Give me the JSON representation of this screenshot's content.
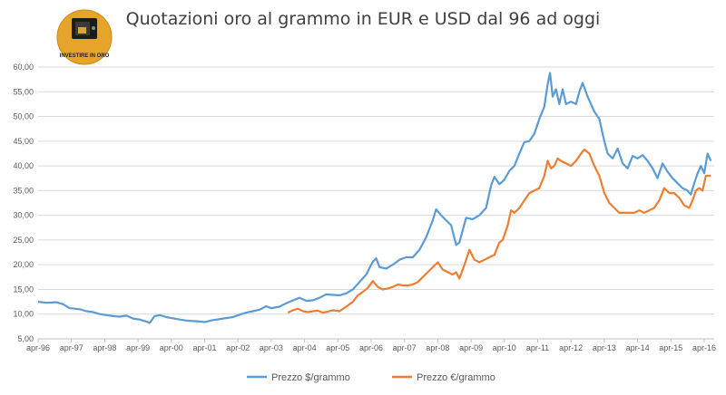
{
  "logo": {
    "text": "INVESTIRE IN ORO",
    "circle_color": "#e6a52a"
  },
  "chart_data": {
    "type": "line",
    "title": "Quotazioni oro al grammo in EUR e USD dal 96 ad oggi",
    "xlabel": "",
    "ylabel": "",
    "ylim": [
      5,
      60
    ],
    "yticks": [
      "5,00",
      "10,00",
      "15,00",
      "20,00",
      "25,00",
      "30,00",
      "35,00",
      "40,00",
      "45,00",
      "50,00",
      "55,00",
      "60,00"
    ],
    "xlim": [
      1996.25,
      2016.55
    ],
    "xticks": [
      {
        "label": "apr-96",
        "t": 1996.25
      },
      {
        "label": "apr-97",
        "t": 1997.25
      },
      {
        "label": "apr-98",
        "t": 1998.25
      },
      {
        "label": "apr-99",
        "t": 1999.25
      },
      {
        "label": "apr-00",
        "t": 2000.25
      },
      {
        "label": "apr-01",
        "t": 2001.25
      },
      {
        "label": "apr-02",
        "t": 2002.25
      },
      {
        "label": "apr-03",
        "t": 2003.25
      },
      {
        "label": "apr-04",
        "t": 2004.25
      },
      {
        "label": "apr-05",
        "t": 2005.25
      },
      {
        "label": "apr-06",
        "t": 2006.25
      },
      {
        "label": "apr-07",
        "t": 2007.25
      },
      {
        "label": "apr-08",
        "t": 2008.25
      },
      {
        "label": "apr-09",
        "t": 2009.25
      },
      {
        "label": "apr-10",
        "t": 2010.25
      },
      {
        "label": "apr-11",
        "t": 2011.25
      },
      {
        "label": "apr-12",
        "t": 2012.25
      },
      {
        "label": "apr-13",
        "t": 2013.25
      },
      {
        "label": "apr-14",
        "t": 2014.25
      },
      {
        "label": "apr-15",
        "t": 2015.25
      },
      {
        "label": "apr-16",
        "t": 2016.25
      }
    ],
    "grid": true,
    "legend_position": "bottom",
    "series": [
      {
        "name": "Prezzo $/grammo",
        "color": "#5b9bd5",
        "points": [
          [
            1996.25,
            12.5
          ],
          [
            1996.5,
            12.3
          ],
          [
            1996.8,
            12.4
          ],
          [
            1997.0,
            12.0
          ],
          [
            1997.2,
            11.2
          ],
          [
            1997.5,
            11.0
          ],
          [
            1997.7,
            10.6
          ],
          [
            1997.9,
            10.4
          ],
          [
            1998.1,
            10.0
          ],
          [
            1998.3,
            9.8
          ],
          [
            1998.5,
            9.6
          ],
          [
            1998.7,
            9.5
          ],
          [
            1998.9,
            9.7
          ],
          [
            1999.1,
            9.1
          ],
          [
            1999.3,
            8.9
          ],
          [
            1999.5,
            8.5
          ],
          [
            1999.6,
            8.2
          ],
          [
            1999.75,
            9.6
          ],
          [
            1999.9,
            9.8
          ],
          [
            2000.1,
            9.4
          ],
          [
            2000.25,
            9.2
          ],
          [
            2000.5,
            8.9
          ],
          [
            2000.7,
            8.7
          ],
          [
            2000.9,
            8.6
          ],
          [
            2001.1,
            8.5
          ],
          [
            2001.25,
            8.4
          ],
          [
            2001.5,
            8.8
          ],
          [
            2001.7,
            9.0
          ],
          [
            2001.9,
            9.2
          ],
          [
            2002.1,
            9.4
          ],
          [
            2002.3,
            9.9
          ],
          [
            2002.5,
            10.3
          ],
          [
            2002.7,
            10.6
          ],
          [
            2002.9,
            10.9
          ],
          [
            2003.1,
            11.6
          ],
          [
            2003.25,
            11.2
          ],
          [
            2003.5,
            11.5
          ],
          [
            2003.7,
            12.2
          ],
          [
            2003.9,
            12.8
          ],
          [
            2004.1,
            13.3
          ],
          [
            2004.3,
            12.7
          ],
          [
            2004.5,
            12.8
          ],
          [
            2004.7,
            13.3
          ],
          [
            2004.9,
            14.0
          ],
          [
            2005.1,
            13.9
          ],
          [
            2005.3,
            13.8
          ],
          [
            2005.5,
            14.2
          ],
          [
            2005.7,
            15.0
          ],
          [
            2005.9,
            16.5
          ],
          [
            2006.1,
            18.0
          ],
          [
            2006.3,
            20.6
          ],
          [
            2006.4,
            21.3
          ],
          [
            2006.5,
            19.5
          ],
          [
            2006.7,
            19.2
          ],
          [
            2006.9,
            20.0
          ],
          [
            2007.1,
            21.0
          ],
          [
            2007.3,
            21.5
          ],
          [
            2007.5,
            21.5
          ],
          [
            2007.7,
            23.0
          ],
          [
            2007.9,
            25.5
          ],
          [
            2008.1,
            29.0
          ],
          [
            2008.2,
            31.2
          ],
          [
            2008.35,
            30.0
          ],
          [
            2008.5,
            29.0
          ],
          [
            2008.65,
            28.0
          ],
          [
            2008.8,
            24.0
          ],
          [
            2008.9,
            24.5
          ],
          [
            2009.1,
            29.5
          ],
          [
            2009.3,
            29.2
          ],
          [
            2009.5,
            30.0
          ],
          [
            2009.7,
            31.5
          ],
          [
            2009.85,
            36.0
          ],
          [
            2009.95,
            37.8
          ],
          [
            2010.1,
            36.3
          ],
          [
            2010.25,
            37.2
          ],
          [
            2010.4,
            39.0
          ],
          [
            2010.55,
            40.0
          ],
          [
            2010.7,
            42.5
          ],
          [
            2010.85,
            44.8
          ],
          [
            2011.0,
            45.0
          ],
          [
            2011.15,
            46.5
          ],
          [
            2011.3,
            49.5
          ],
          [
            2011.45,
            52.0
          ],
          [
            2011.55,
            56.5
          ],
          [
            2011.62,
            58.8
          ],
          [
            2011.7,
            54.0
          ],
          [
            2011.8,
            55.5
          ],
          [
            2011.9,
            52.5
          ],
          [
            2012.0,
            55.5
          ],
          [
            2012.1,
            52.5
          ],
          [
            2012.25,
            53.0
          ],
          [
            2012.4,
            52.5
          ],
          [
            2012.5,
            55.0
          ],
          [
            2012.6,
            56.8
          ],
          [
            2012.75,
            54.0
          ],
          [
            2012.95,
            51.0
          ],
          [
            2013.1,
            49.5
          ],
          [
            2013.25,
            45.0
          ],
          [
            2013.35,
            42.5
          ],
          [
            2013.5,
            41.5
          ],
          [
            2013.65,
            43.5
          ],
          [
            2013.8,
            40.5
          ],
          [
            2013.95,
            39.5
          ],
          [
            2014.1,
            42.0
          ],
          [
            2014.25,
            41.5
          ],
          [
            2014.4,
            42.2
          ],
          [
            2014.55,
            41.0
          ],
          [
            2014.7,
            39.5
          ],
          [
            2014.85,
            37.5
          ],
          [
            2015.0,
            40.5
          ],
          [
            2015.15,
            38.8
          ],
          [
            2015.3,
            37.5
          ],
          [
            2015.45,
            36.5
          ],
          [
            2015.6,
            35.5
          ],
          [
            2015.75,
            35.0
          ],
          [
            2015.85,
            34.2
          ],
          [
            2015.95,
            36.5
          ],
          [
            2016.05,
            38.5
          ],
          [
            2016.15,
            40.0
          ],
          [
            2016.25,
            38.5
          ],
          [
            2016.35,
            42.5
          ],
          [
            2016.45,
            41.0
          ]
        ]
      },
      {
        "name": "Prezzo €/grammo",
        "color": "#ed7d31",
        "points": [
          [
            2003.75,
            10.3
          ],
          [
            2003.9,
            10.8
          ],
          [
            2004.05,
            11.1
          ],
          [
            2004.2,
            10.6
          ],
          [
            2004.35,
            10.4
          ],
          [
            2004.5,
            10.6
          ],
          [
            2004.65,
            10.7
          ],
          [
            2004.8,
            10.3
          ],
          [
            2004.95,
            10.5
          ],
          [
            2005.1,
            10.8
          ],
          [
            2005.3,
            10.6
          ],
          [
            2005.5,
            11.5
          ],
          [
            2005.7,
            12.5
          ],
          [
            2005.85,
            13.8
          ],
          [
            2006.0,
            14.5
          ],
          [
            2006.15,
            15.3
          ],
          [
            2006.3,
            16.7
          ],
          [
            2006.45,
            15.5
          ],
          [
            2006.6,
            15.0
          ],
          [
            2006.75,
            15.2
          ],
          [
            2006.9,
            15.5
          ],
          [
            2007.05,
            16.0
          ],
          [
            2007.2,
            15.8
          ],
          [
            2007.35,
            15.8
          ],
          [
            2007.5,
            16.0
          ],
          [
            2007.65,
            16.5
          ],
          [
            2007.8,
            17.5
          ],
          [
            2007.95,
            18.5
          ],
          [
            2008.1,
            19.5
          ],
          [
            2008.25,
            20.5
          ],
          [
            2008.4,
            19.0
          ],
          [
            2008.55,
            18.5
          ],
          [
            2008.7,
            18.0
          ],
          [
            2008.8,
            18.5
          ],
          [
            2008.9,
            17.2
          ],
          [
            2009.05,
            20.0
          ],
          [
            2009.2,
            23.0
          ],
          [
            2009.35,
            21.0
          ],
          [
            2009.5,
            20.5
          ],
          [
            2009.65,
            21.0
          ],
          [
            2009.8,
            21.5
          ],
          [
            2009.95,
            22.0
          ],
          [
            2010.1,
            24.5
          ],
          [
            2010.2,
            25.0
          ],
          [
            2010.35,
            28.0
          ],
          [
            2010.45,
            31.0
          ],
          [
            2010.55,
            30.5
          ],
          [
            2010.7,
            31.5
          ],
          [
            2010.85,
            33.0
          ],
          [
            2011.0,
            34.5
          ],
          [
            2011.15,
            35.0
          ],
          [
            2011.3,
            35.5
          ],
          [
            2011.45,
            38.0
          ],
          [
            2011.55,
            41.0
          ],
          [
            2011.65,
            39.5
          ],
          [
            2011.75,
            40.0
          ],
          [
            2011.85,
            41.5
          ],
          [
            2011.95,
            41.0
          ],
          [
            2012.1,
            40.5
          ],
          [
            2012.25,
            40.0
          ],
          [
            2012.4,
            41.0
          ],
          [
            2012.55,
            42.5
          ],
          [
            2012.65,
            43.3
          ],
          [
            2012.8,
            42.5
          ],
          [
            2012.95,
            40.0
          ],
          [
            2013.1,
            38.0
          ],
          [
            2013.25,
            34.5
          ],
          [
            2013.4,
            32.5
          ],
          [
            2013.55,
            31.5
          ],
          [
            2013.7,
            30.5
          ],
          [
            2013.85,
            30.5
          ],
          [
            2014.0,
            30.5
          ],
          [
            2014.15,
            30.5
          ],
          [
            2014.3,
            31.0
          ],
          [
            2014.45,
            30.5
          ],
          [
            2014.6,
            31.0
          ],
          [
            2014.75,
            31.5
          ],
          [
            2014.9,
            33.0
          ],
          [
            2015.05,
            35.5
          ],
          [
            2015.2,
            34.5
          ],
          [
            2015.35,
            34.5
          ],
          [
            2015.5,
            33.5
          ],
          [
            2015.65,
            32.0
          ],
          [
            2015.8,
            31.5
          ],
          [
            2015.9,
            33.0
          ],
          [
            2016.0,
            35.0
          ],
          [
            2016.1,
            35.5
          ],
          [
            2016.2,
            35.0
          ],
          [
            2016.3,
            38.0
          ],
          [
            2016.45,
            38.0
          ]
        ]
      }
    ]
  }
}
